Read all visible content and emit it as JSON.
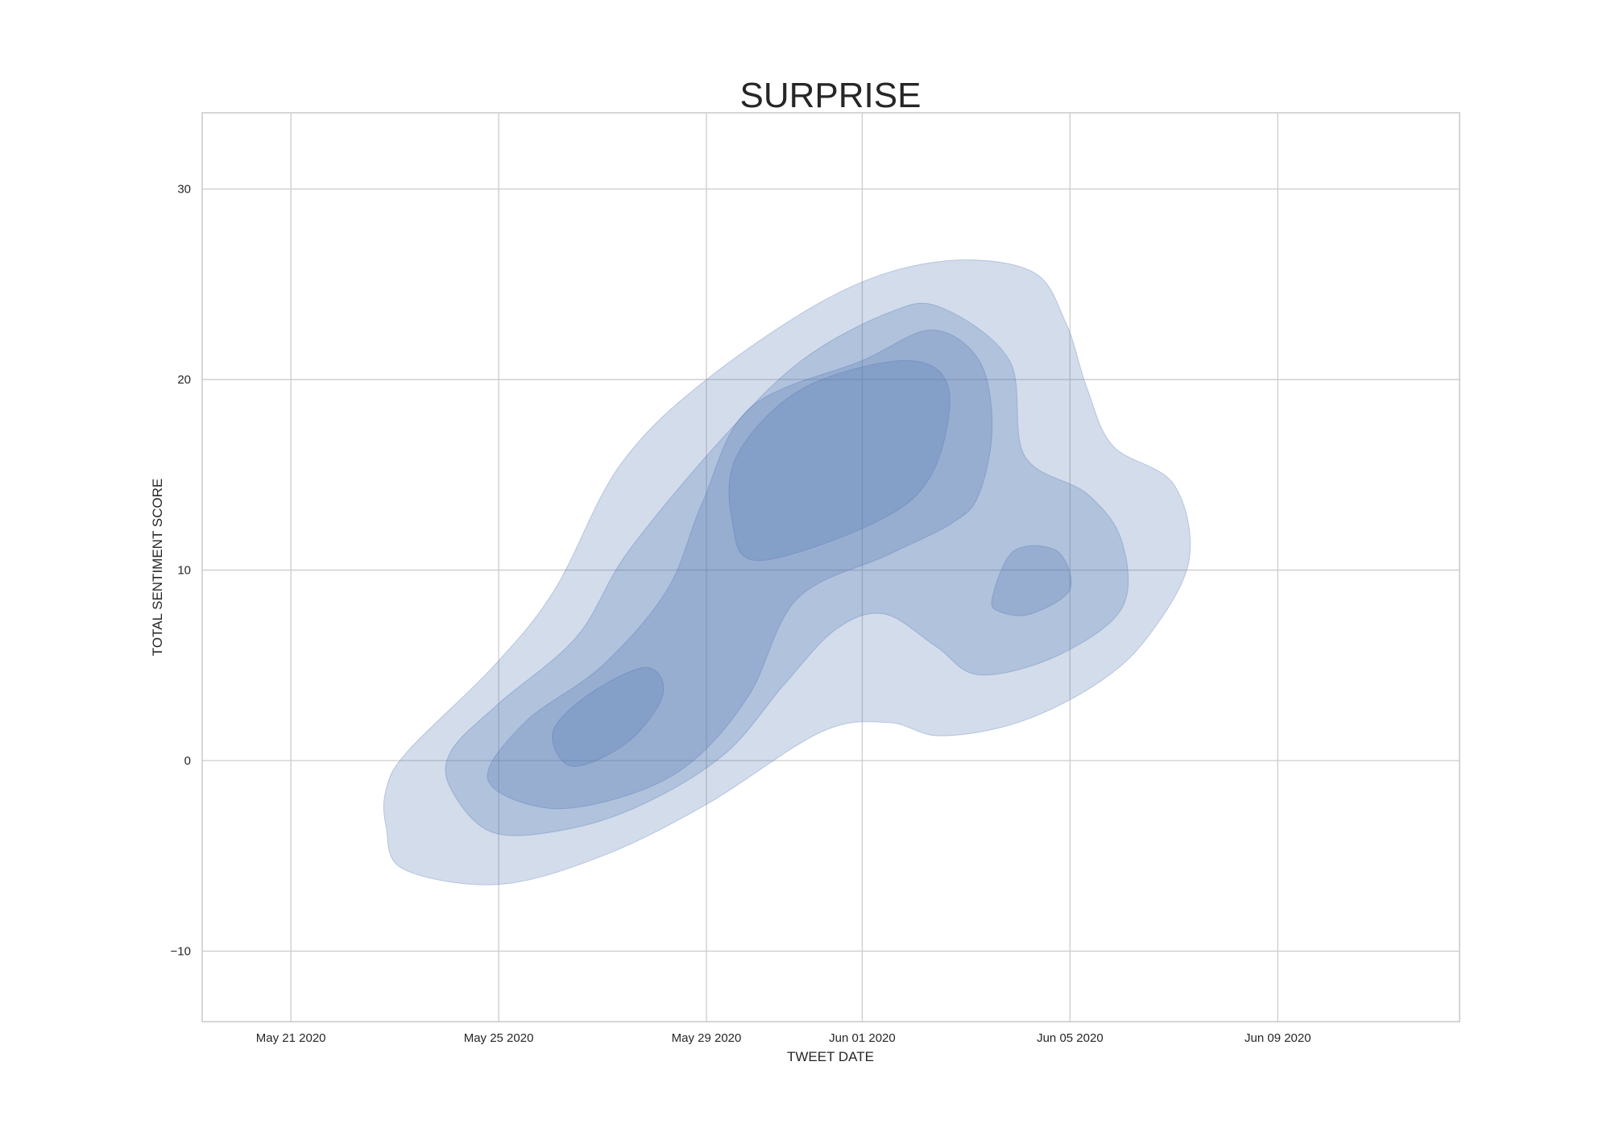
{
  "chart_data": {
    "type": "kde-contour",
    "title": "SURPRISE",
    "xlabel": "TWEET DATE",
    "ylabel": "TOTAL SENTIMENT SCORE",
    "x_ticks": [
      "May 21 2020",
      "May 25 2020",
      "May 29 2020",
      "Jun 01 2020",
      "Jun 05 2020",
      "Jun 09 2020"
    ],
    "y_ticks": [
      "30",
      "20",
      "10",
      "0",
      "−10"
    ],
    "xlim": [
      "2020-05-19T07:00",
      "2020-06-12T12:00"
    ],
    "ylim": [
      -13.7,
      34
    ],
    "grid": true,
    "fill_color": "#4c72b0",
    "levels": [
      {
        "name": "level-1",
        "points": [
          [
            "2020-05-22T20:00",
            -3.5
          ],
          [
            "2020-05-23T04:00",
            -5.7
          ],
          [
            "2020-05-25T00:00",
            -6.5
          ],
          [
            "2020-05-27T00:00",
            -5.0
          ],
          [
            "2020-05-29T00:00",
            -2.3
          ],
          [
            "2020-05-31T05:00",
            1.5
          ],
          [
            "2020-06-01T12:00",
            2.0
          ],
          [
            "2020-06-02T12:00",
            1.3
          ],
          [
            "2020-06-04T00:00",
            2.0
          ],
          [
            "2020-06-05T12:00",
            4.0
          ],
          [
            "2020-06-06T12:00",
            6.5
          ],
          [
            "2020-06-07T07:00",
            10.5
          ],
          [
            "2020-06-07T00:00",
            14.5
          ],
          [
            "2020-06-05T20:00",
            16.5
          ],
          [
            "2020-06-05T08:00",
            19.5
          ],
          [
            "2020-06-04T22:00",
            23.0
          ],
          [
            "2020-06-04T06:00",
            25.7
          ],
          [
            "2020-06-02T12:00",
            26.2
          ],
          [
            "2020-05-31T12:00",
            24.5
          ],
          [
            "2020-05-29T00:00",
            20.0
          ],
          [
            "2020-05-27T08:00",
            15.5
          ],
          [
            "2020-05-26T02:00",
            9.0
          ],
          [
            "2020-05-24T22:00",
            5.0
          ],
          [
            "2020-05-23T06:00",
            0.5
          ],
          [
            "2020-05-22T20:00",
            -1.5
          ]
        ]
      },
      {
        "name": "level-2",
        "points": [
          [
            "2020-05-24T02:00",
            -1.5
          ],
          [
            "2020-05-24T22:00",
            -3.8
          ],
          [
            "2020-05-26T12:00",
            -3.5
          ],
          [
            "2020-05-28T00:00",
            -2.0
          ],
          [
            "2020-05-29T10:00",
            0.5
          ],
          [
            "2020-05-30T12:00",
            4.0
          ],
          [
            "2020-05-31T12:00",
            6.9
          ],
          [
            "2020-06-01T10:00",
            7.7
          ],
          [
            "2020-06-02T10:00",
            6.0
          ],
          [
            "2020-06-03T06:00",
            4.5
          ],
          [
            "2020-06-04T18:00",
            5.5
          ],
          [
            "2020-06-06T00:00",
            8.0
          ],
          [
            "2020-06-06T00:00",
            11.5
          ],
          [
            "2020-06-05T08:00",
            14.0
          ],
          [
            "2020-06-04T03:00",
            16.0
          ],
          [
            "2020-06-03T20:00",
            21.0
          ],
          [
            "2020-06-02T12:00",
            23.8
          ],
          [
            "2020-06-01T12:00",
            23.5
          ],
          [
            "2020-05-30T20:00",
            21.0
          ],
          [
            "2020-05-29T08:00",
            17.0
          ],
          [
            "2020-05-27T12:00",
            11.0
          ],
          [
            "2020-05-26T12:00",
            6.5
          ],
          [
            "2020-05-25T00:00",
            3.0
          ],
          [
            "2020-05-24T02:00",
            0.5
          ]
        ]
      },
      {
        "name": "level-3",
        "points": [
          [
            "2020-05-24T19:00",
            -1.0
          ],
          [
            "2020-05-25T23:00",
            -2.5
          ],
          [
            "2020-05-27T12:00",
            -1.8
          ],
          [
            "2020-05-28T18:00",
            0.0
          ],
          [
            "2020-05-29T20:00",
            3.5
          ],
          [
            "2020-05-30T18:00",
            8.5
          ],
          [
            "2020-06-01T12:00",
            10.8
          ],
          [
            "2020-06-02T18:00",
            12.5
          ],
          [
            "2020-06-03T06:00",
            14.0
          ],
          [
            "2020-06-03T12:00",
            17.5
          ],
          [
            "2020-06-03T06:00",
            21.0
          ],
          [
            "2020-06-02T08:00",
            22.6
          ],
          [
            "2020-06-01T00:00",
            21.0
          ],
          [
            "2020-05-29T20:00",
            18.5
          ],
          [
            "2020-05-28T22:00",
            13.5
          ],
          [
            "2020-05-28T06:00",
            9.0
          ],
          [
            "2020-05-27T00:00",
            5.0
          ],
          [
            "2020-05-25T12:00",
            2.0
          ]
        ]
      },
      {
        "name": "level-4a",
        "points": [
          [
            "2020-05-30T00:00",
            10.5
          ],
          [
            "2020-05-29T12:00",
            12.5
          ],
          [
            "2020-05-29T14:00",
            16.0
          ],
          [
            "2020-05-30T20:00",
            19.5
          ],
          [
            "2020-06-01T20:00",
            21.0
          ],
          [
            "2020-06-02T16:00",
            19.5
          ],
          [
            "2020-06-02T08:00",
            15.0
          ],
          [
            "2020-06-01T06:00",
            12.5
          ]
        ]
      },
      {
        "name": "level-4b",
        "points": [
          [
            "2020-05-26T01:00",
            1.5
          ],
          [
            "2020-05-26T10:00",
            -0.3
          ],
          [
            "2020-05-27T12:00",
            1.0
          ],
          [
            "2020-05-28T04:00",
            3.5
          ],
          [
            "2020-05-27T20:00",
            4.9
          ],
          [
            "2020-05-26T18:00",
            3.5
          ]
        ]
      },
      {
        "name": "level-4c",
        "points": [
          [
            "2020-06-03T12:00",
            8.5
          ],
          [
            "2020-06-03T22:00",
            11.0
          ],
          [
            "2020-06-04T18:00",
            11.0
          ],
          [
            "2020-06-05T00:00",
            9.0
          ],
          [
            "2020-06-04T06:00",
            7.7
          ],
          [
            "2020-06-03T16:00",
            7.8
          ]
        ]
      }
    ]
  }
}
